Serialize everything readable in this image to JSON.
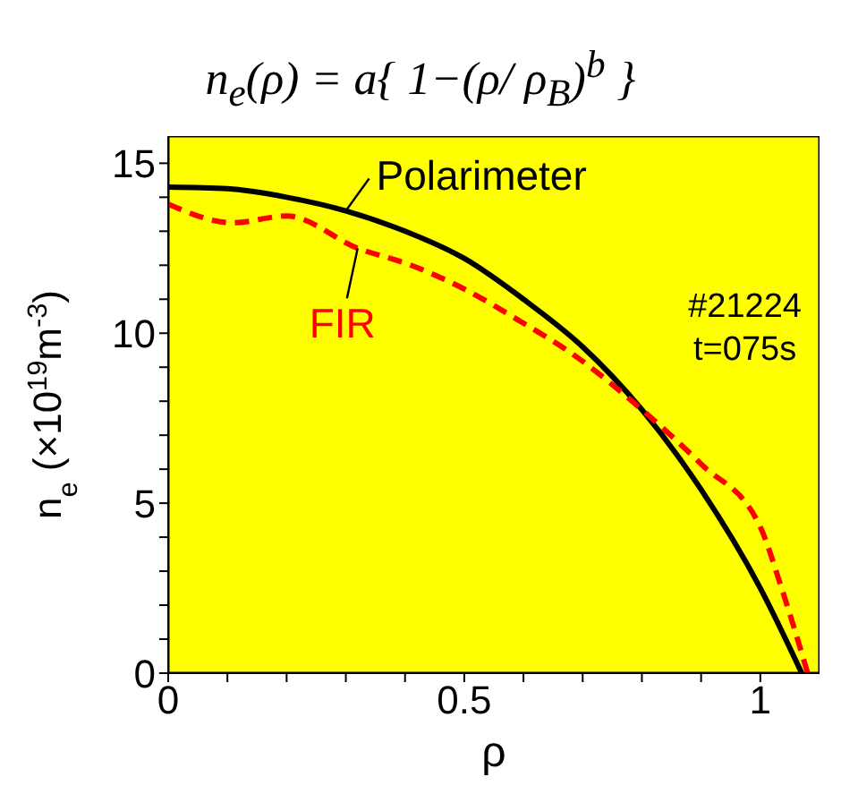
{
  "chart_data": {
    "type": "line",
    "title": "n$_{e}$(ρ) = a{ 1−(ρ/ ρ$_{B}$)$^{b}$ }",
    "xlabel": "ρ",
    "ylabel": "n$_{e}$ (×10$^{19}$m$^{-3}$)",
    "annotations": [
      "#21224",
      "t=075s"
    ],
    "series": [
      {
        "name": "Polarimeter",
        "color": "#000000",
        "line_style": "solid",
        "x": [
          0,
          0.1,
          0.2,
          0.3,
          0.4,
          0.5,
          0.6,
          0.7,
          0.8,
          0.9,
          1.0,
          1.07
        ],
        "values": [
          14.3,
          14.25,
          14.0,
          13.6,
          13.0,
          12.2,
          11.0,
          9.6,
          7.75,
          5.4,
          2.5,
          0
        ]
      },
      {
        "name": "FIR",
        "color": "#ff0000",
        "line_style": "dashed",
        "x": [
          0,
          0.11,
          0.2,
          0.32,
          0.41,
          0.5,
          0.59,
          0.69,
          0.8,
          0.9,
          1.0,
          1.035,
          1.08
        ],
        "values": [
          13.8,
          13.25,
          13.45,
          12.5,
          12.0,
          11.3,
          10.4,
          9.3,
          7.75,
          6.15,
          4.3,
          2.55,
          0
        ]
      }
    ],
    "xlim": [
      0,
      1.1
    ],
    "xticks": [
      0,
      {
        "value": 0.1,
        "label": null
      },
      {
        "value": 0.2,
        "label": null
      },
      {
        "value": 0.3,
        "label": null
      },
      {
        "value": 0.4,
        "label": null
      },
      0.5,
      {
        "value": 0.6,
        "label": null
      },
      {
        "value": 0.7,
        "label": null
      },
      {
        "value": 0.8,
        "label": null
      },
      {
        "value": 0.9,
        "label": null
      },
      1
    ],
    "ylim": [
      0,
      15.8
    ],
    "yticks": [
      0,
      {
        "value": 1,
        "label": null
      },
      {
        "value": 2,
        "label": null
      },
      {
        "value": 3,
        "label": null
      },
      {
        "value": 4,
        "label": null
      },
      5,
      {
        "value": 6,
        "label": null
      },
      {
        "value": 7,
        "label": null
      },
      {
        "value": 8,
        "label": null
      },
      {
        "value": 9,
        "label": null
      },
      10,
      {
        "value": 11,
        "label": null
      },
      {
        "value": 12,
        "label": null
      },
      {
        "value": 13,
        "label": null
      },
      {
        "value": 14,
        "label": null
      },
      15
    ],
    "marker": "none"
  }
}
